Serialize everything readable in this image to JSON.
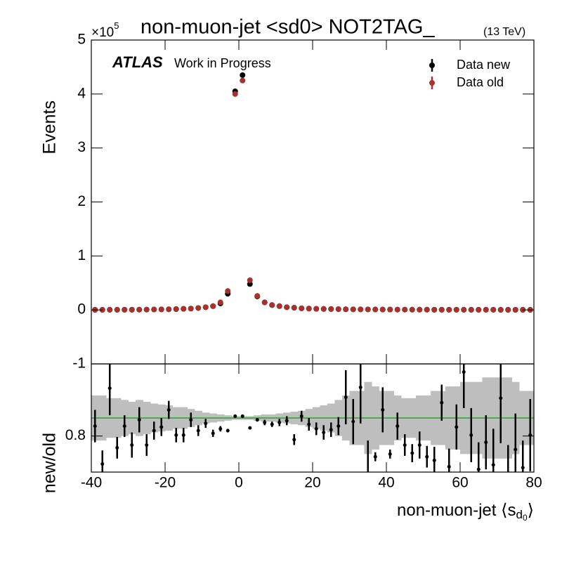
{
  "chart_data": [
    {
      "type": "scatter",
      "title": "non-muon-jet <sd0> NOT2TAG_",
      "energy_label": "(13 TeV)",
      "multiplier_base": "×10",
      "multiplier_exp": "5",
      "y_label": "Events",
      "experiment": "ATLAS",
      "status": "Work in Progress",
      "legend": "upper right",
      "x": [
        -39,
        -37,
        -35,
        -33,
        -31,
        -29,
        -27,
        -25,
        -23,
        -21,
        -19,
        -17,
        -15,
        -13,
        -11,
        -9,
        -7,
        -5,
        -3,
        -1,
        1,
        3,
        5,
        7,
        9,
        11,
        13,
        15,
        17,
        19,
        21,
        23,
        25,
        27,
        29,
        31,
        33,
        35,
        37,
        39,
        41,
        43,
        45,
        47,
        49,
        51,
        53,
        55,
        57,
        59,
        61,
        63,
        65,
        67,
        69,
        71,
        73,
        75,
        77,
        79
      ],
      "xlim": [
        -40,
        80
      ],
      "xticks": [
        -40,
        -20,
        0,
        20,
        40,
        60,
        80
      ],
      "ylim": [
        -1,
        5
      ],
      "yticks": [
        5,
        4,
        3,
        2,
        1,
        0,
        -1
      ],
      "series": [
        {
          "name": "Data new",
          "color": "#000000",
          "values": [
            0.002,
            0.002,
            0.003,
            0.003,
            0.004,
            0.004,
            0.005,
            0.006,
            0.008,
            0.01,
            0.012,
            0.015,
            0.02,
            0.025,
            0.035,
            0.05,
            0.07,
            0.12,
            0.3,
            4.05,
            4.35,
            0.48,
            0.25,
            0.14,
            0.09,
            0.07,
            0.05,
            0.04,
            0.03,
            0.025,
            0.02,
            0.018,
            0.016,
            0.014,
            0.012,
            0.011,
            0.01,
            0.009,
            0.008,
            0.007,
            0.007,
            0.006,
            0.006,
            0.005,
            0.005,
            0.005,
            0.004,
            0.004,
            0.004,
            0.004,
            0.003,
            0.003,
            0.003,
            0.003,
            0.003,
            0.002,
            0.002,
            0.002,
            0.002,
            0.002
          ]
        },
        {
          "name": "Data old",
          "color": "#a5322c",
          "values": [
            0.002,
            0.002,
            0.003,
            0.003,
            0.004,
            0.004,
            0.005,
            0.006,
            0.008,
            0.01,
            0.012,
            0.015,
            0.02,
            0.025,
            0.035,
            0.05,
            0.07,
            0.14,
            0.35,
            4.0,
            4.25,
            0.55,
            0.26,
            0.14,
            0.09,
            0.07,
            0.05,
            0.04,
            0.03,
            0.025,
            0.02,
            0.018,
            0.016,
            0.014,
            0.012,
            0.011,
            0.01,
            0.009,
            0.008,
            0.007,
            0.007,
            0.006,
            0.006,
            0.005,
            0.005,
            0.005,
            0.004,
            0.004,
            0.004,
            0.004,
            0.003,
            0.003,
            0.003,
            0.003,
            0.003,
            0.002,
            0.002,
            0.002,
            0.002,
            0.002
          ]
        }
      ]
    },
    {
      "type": "ratio",
      "y_label": "new/old",
      "x_label_main": "non-muon-jet ⟨s",
      "x_label_sub": "d",
      "x_label_subsub": "0",
      "x_label_end": "⟩",
      "x": [
        -39,
        -37,
        -35,
        -33,
        -31,
        -29,
        -27,
        -25,
        -23,
        -21,
        -19,
        -17,
        -15,
        -13,
        -11,
        -9,
        -7,
        -5,
        -3,
        -1,
        1,
        3,
        5,
        7,
        9,
        11,
        13,
        15,
        17,
        19,
        21,
        23,
        25,
        27,
        29,
        31,
        33,
        35,
        37,
        39,
        41,
        43,
        45,
        47,
        49,
        51,
        53,
        55,
        57,
        59,
        61,
        63,
        65,
        67,
        69,
        71,
        73,
        75,
        77,
        79
      ],
      "xlim": [
        -40,
        80
      ],
      "xticks": [
        -40,
        -20,
        0,
        20,
        40,
        60,
        80
      ],
      "ylim": [
        0.4,
        1.6
      ],
      "yticks": [
        0.8
      ],
      "reference": 1,
      "reference_color": "#2ca02c",
      "band_color": "#bebebe",
      "color": "#000000",
      "values": [
        0.91,
        0.49,
        1.33,
        0.67,
        0.91,
        0.7,
        0.98,
        0.7,
        0.86,
        0.9,
        1.09,
        0.81,
        0.81,
        0.98,
        0.86,
        0.94,
        0.83,
        0.88,
        0.86,
        1.02,
        1.02,
        0.89,
        0.98,
        0.95,
        0.93,
        0.95,
        0.97,
        0.76,
        1.02,
        0.93,
        0.88,
        0.84,
        0.87,
        0.91,
        1.23,
        0.96,
        1.34,
        0.35,
        0.57,
        1.09,
        0.6,
        0.91,
        0.7,
        0.61,
        0.7,
        0.57,
        0.53,
        1.17,
        0.46,
        0.9,
        1.51,
        0.81,
        0.43,
        0.73,
        0.48,
        1.22,
        0.3,
        0.65,
        0.45,
        0.81
      ],
      "errors": [
        0.18,
        0.15,
        0.3,
        0.12,
        0.12,
        0.14,
        0.14,
        0.12,
        0.1,
        0.1,
        0.1,
        0.08,
        0.08,
        0.08,
        0.06,
        0.05,
        0.04,
        0.03,
        0.02,
        0.01,
        0.01,
        0.01,
        0.02,
        0.03,
        0.03,
        0.04,
        0.05,
        0.06,
        0.06,
        0.07,
        0.07,
        0.08,
        0.08,
        0.1,
        0.3,
        0.25,
        0.4,
        0.4,
        0.05,
        0.25,
        0.05,
        0.15,
        0.12,
        0.1,
        0.15,
        0.12,
        0.15,
        0.2,
        0.2,
        0.25,
        0.4,
        0.3,
        0.3,
        0.3,
        0.4,
        0.5,
        0.4,
        0.4,
        0.3,
        0.4
      ],
      "band": [
        0.25,
        0.25,
        0.22,
        0.22,
        0.2,
        0.18,
        0.2,
        0.18,
        0.16,
        0.15,
        0.14,
        0.12,
        0.12,
        0.1,
        0.08,
        0.06,
        0.05,
        0.04,
        0.03,
        0.02,
        0.02,
        0.02,
        0.03,
        0.04,
        0.04,
        0.05,
        0.06,
        0.07,
        0.08,
        0.1,
        0.12,
        0.14,
        0.16,
        0.2,
        0.25,
        0.3,
        0.3,
        0.4,
        0.35,
        0.3,
        0.3,
        0.25,
        0.22,
        0.22,
        0.25,
        0.25,
        0.3,
        0.3,
        0.35,
        0.35,
        0.4,
        0.4,
        0.4,
        0.45,
        0.45,
        0.45,
        0.45,
        0.4,
        0.3,
        0.3
      ]
    }
  ]
}
